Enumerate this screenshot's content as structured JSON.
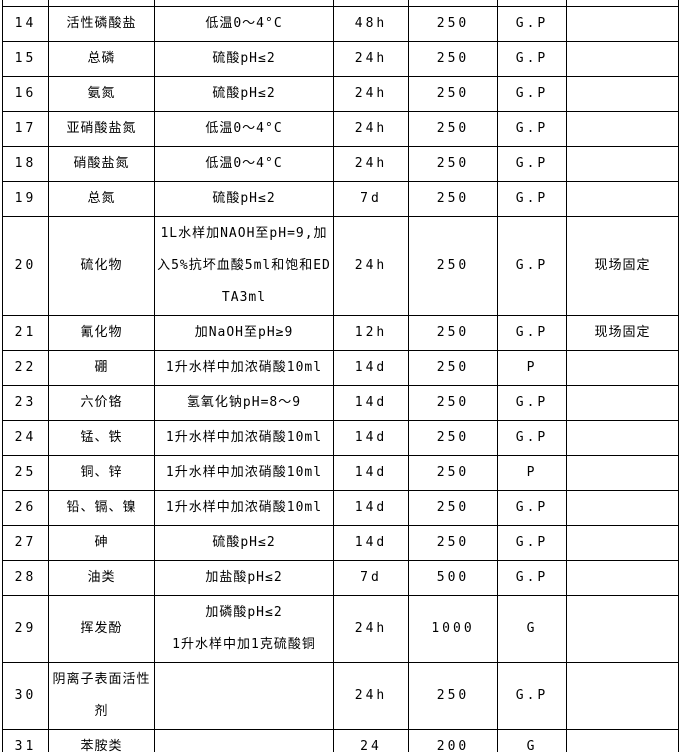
{
  "table": {
    "rows": [
      {
        "no": "14",
        "name": "活性磷酸盐",
        "preservation": "低温0～4°C",
        "time": "48h",
        "volume": "250",
        "container": "G.P",
        "note": ""
      },
      {
        "no": "15",
        "name": "总磷",
        "preservation": "硫酸pH≤2",
        "time": "24h",
        "volume": "250",
        "container": "G.P",
        "note": ""
      },
      {
        "no": "16",
        "name": "氨氮",
        "preservation": "硫酸pH≤2",
        "time": "24h",
        "volume": "250",
        "container": "G.P",
        "note": ""
      },
      {
        "no": "17",
        "name": "亚硝酸盐氮",
        "preservation": "低温0～4°C",
        "time": "24h",
        "volume": "250",
        "container": "G.P",
        "note": ""
      },
      {
        "no": "18",
        "name": "硝酸盐氮",
        "preservation": "低温0～4°C",
        "time": "24h",
        "volume": "250",
        "container": "G.P",
        "note": ""
      },
      {
        "no": "19",
        "name": "总氮",
        "preservation": "硫酸pH≤2",
        "time": "7d",
        "volume": "250",
        "container": "G.P",
        "note": ""
      },
      {
        "no": "20",
        "name": "硫化物",
        "preservation": "1L水样加NAOH至pH=9,加入5%抗坏血酸5ml和饱和EDTA3ml",
        "time": "24h",
        "volume": "250",
        "container": "G.P",
        "note": "现场固定"
      },
      {
        "no": "21",
        "name": "氰化物",
        "preservation": "加NaOH至pH≥9",
        "time": "12h",
        "volume": "250",
        "container": "G.P",
        "note": "现场固定"
      },
      {
        "no": "22",
        "name": "硼",
        "preservation": "1升水样中加浓硝酸10ml",
        "time": "14d",
        "volume": "250",
        "container": "P",
        "note": ""
      },
      {
        "no": "23",
        "name": "六价铬",
        "preservation": "氢氧化钠pH=8～9",
        "time": "14d",
        "volume": "250",
        "container": "G.P",
        "note": ""
      },
      {
        "no": "24",
        "name": "锰、铁",
        "preservation": "1升水样中加浓硝酸10ml",
        "time": "14d",
        "volume": "250",
        "container": "G.P",
        "note": ""
      },
      {
        "no": "25",
        "name": "铜、锌",
        "preservation": "1升水样中加浓硝酸10ml",
        "time": "14d",
        "volume": "250",
        "container": "P",
        "note": ""
      },
      {
        "no": "26",
        "name": "铅、镉、镍",
        "preservation": "1升水样中加浓硝酸10ml",
        "time": "14d",
        "volume": "250",
        "container": "G.P",
        "note": ""
      },
      {
        "no": "27",
        "name": "砷",
        "preservation": "硫酸pH≤2",
        "time": "14d",
        "volume": "250",
        "container": "G.P",
        "note": ""
      },
      {
        "no": "28",
        "name": "油类",
        "preservation": "加盐酸pH≤2",
        "time": "7d",
        "volume": "500",
        "container": "G.P",
        "note": ""
      },
      {
        "no": "29",
        "name": "挥发酚",
        "preservation": "加磷酸pH≤2\n1升水样中加1克硫酸铜",
        "time": "24h",
        "volume": "1000",
        "container": "G",
        "note": ""
      },
      {
        "no": "30",
        "name": "阴离子表面活性剂",
        "preservation": "",
        "time": "24h",
        "volume": "250",
        "container": "G.P",
        "note": ""
      },
      {
        "no": "31",
        "name": "苯胺类",
        "preservation": "",
        "time": "24",
        "volume": "200",
        "container": "G",
        "note": ""
      }
    ]
  }
}
